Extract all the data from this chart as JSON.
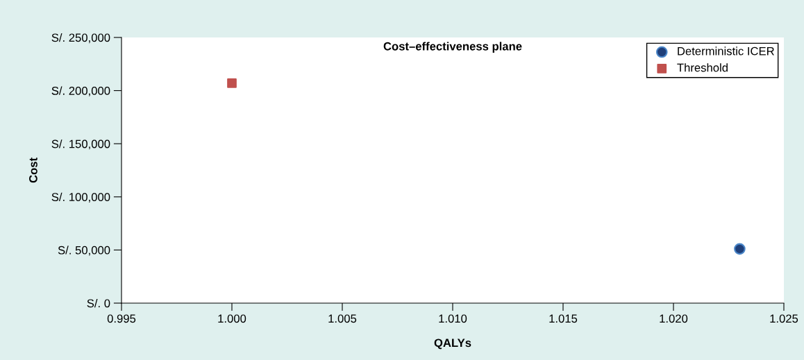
{
  "chart_data": {
    "type": "scatter",
    "title": "Cost–effectiveness plane",
    "xlabel": "QALYs",
    "ylabel": "Cost",
    "series": [
      {
        "name": "Deterministic ICER",
        "color": "#1f3f7a",
        "marker": "circle",
        "x": [
          1.023
        ],
        "values": [
          51000
        ]
      },
      {
        "name": "Threshold",
        "color": "#c0504d",
        "marker": "square",
        "x": [
          1.0
        ],
        "values": [
          207000
        ]
      }
    ],
    "xlim": [
      0.995,
      1.025
    ],
    "xticks": [
      {
        "value": 0.995,
        "label": "0.995"
      },
      {
        "value": 1.0,
        "label": "1.000"
      },
      {
        "value": 1.005,
        "label": "1.005"
      },
      {
        "value": 1.01,
        "label": "1.010"
      },
      {
        "value": 1.015,
        "label": "1.015"
      },
      {
        "value": 1.02,
        "label": "1.020"
      },
      {
        "value": 1.025,
        "label": "1.025"
      }
    ],
    "ylim": [
      0,
      250000
    ],
    "yticks": [
      {
        "value": 0,
        "label": "S/. 0"
      },
      {
        "value": 50000,
        "label": "S/. 50,000"
      },
      {
        "value": 100000,
        "label": "S/. 100,000"
      },
      {
        "value": 150000,
        "label": "S/. 150,000"
      },
      {
        "value": 200000,
        "label": "S/. 200,000"
      },
      {
        "value": 250000,
        "label": "S/. 250,000"
      }
    ],
    "grid": false,
    "legend": "top right"
  }
}
